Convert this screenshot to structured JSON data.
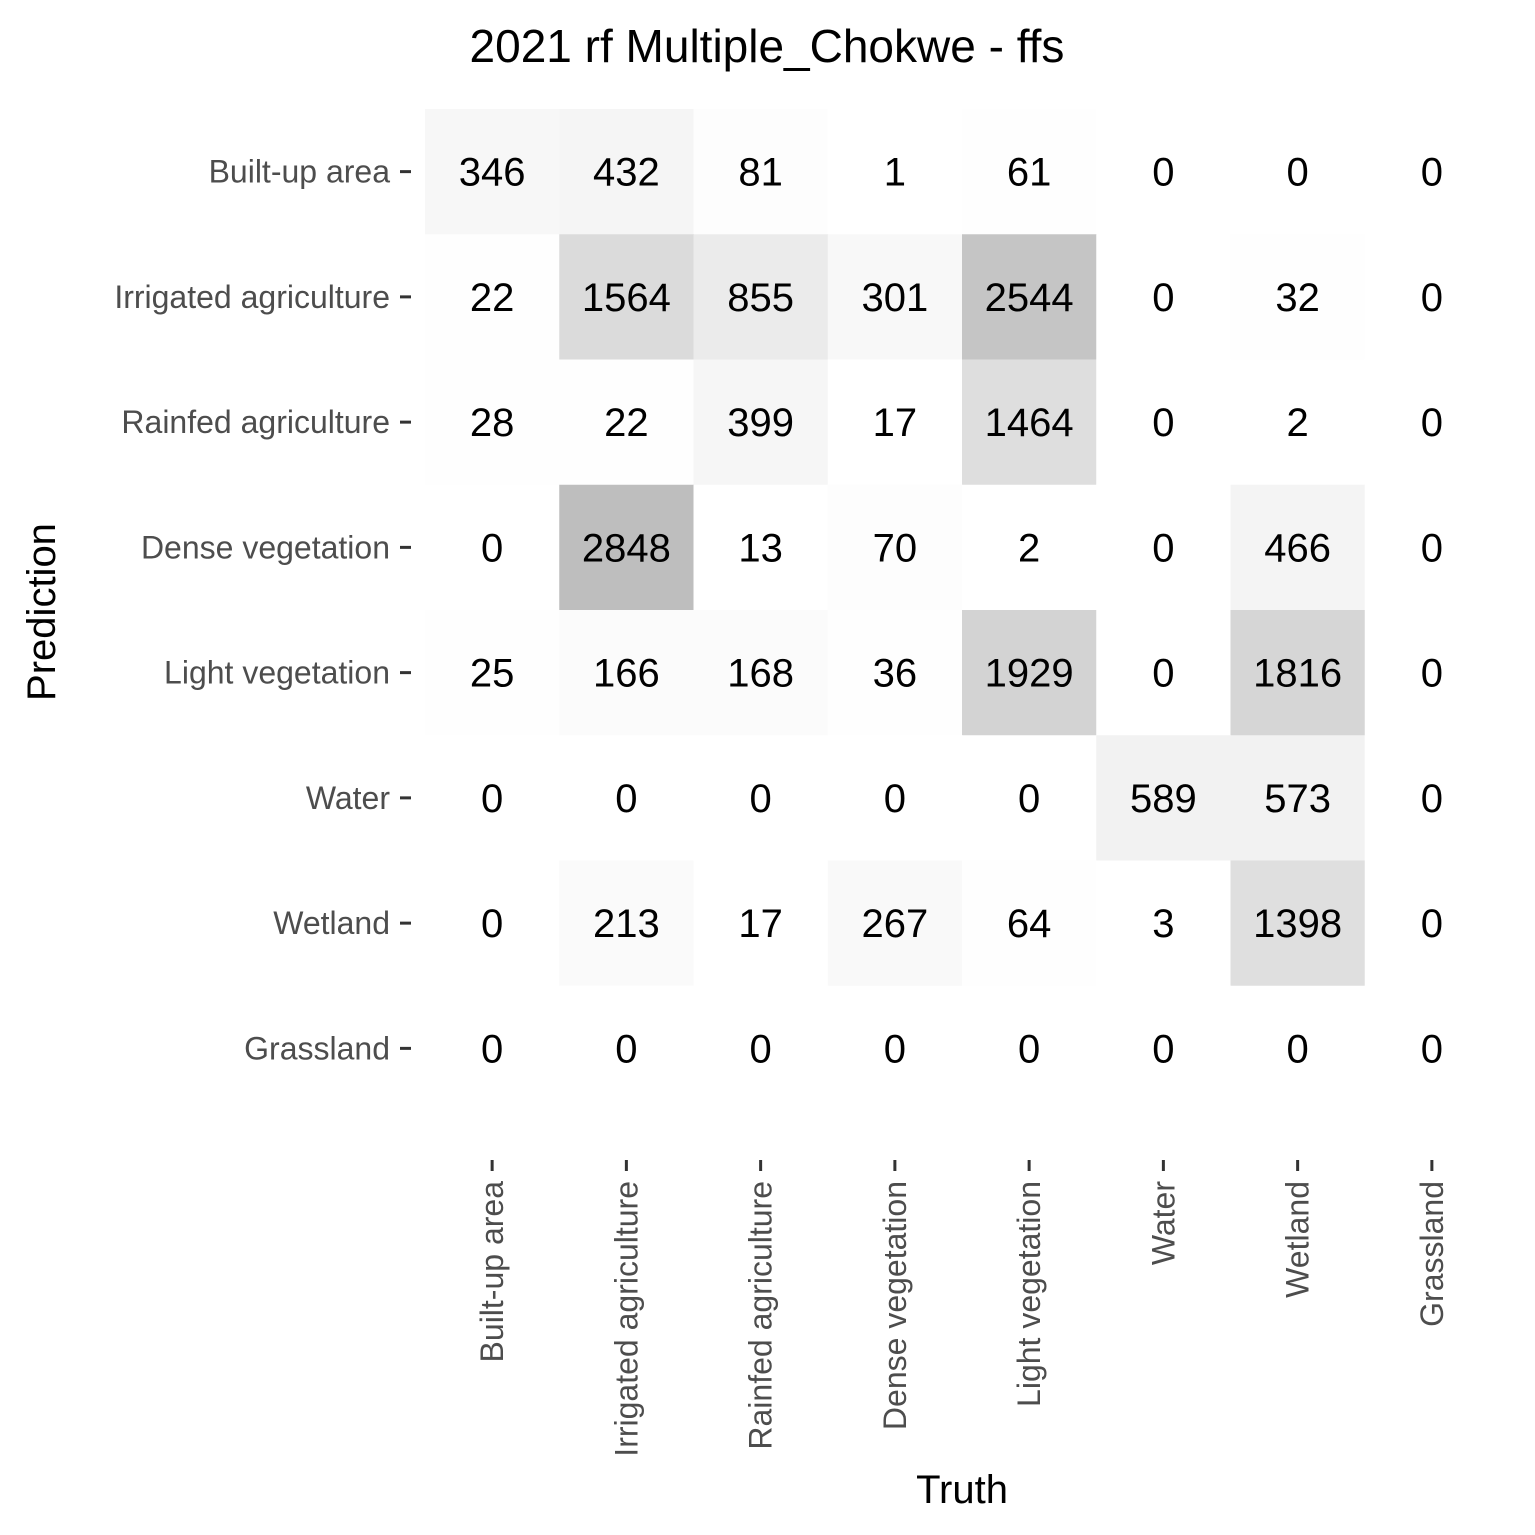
{
  "chart_data": {
    "type": "heatmap",
    "title": "2021 rf Multiple_Chokwe - ffs",
    "xlabel": "Truth",
    "ylabel": "Prediction",
    "x_categories": [
      "Built-up area",
      "Irrigated agriculture",
      "Rainfed agriculture",
      "Dense vegetation",
      "Light vegetation",
      "Water",
      "Wetland",
      "Grassland"
    ],
    "y_categories": [
      "Built-up area",
      "Irrigated agriculture",
      "Rainfed agriculture",
      "Dense vegetation",
      "Light vegetation",
      "Water",
      "Wetland",
      "Grassland"
    ],
    "values": [
      [
        346,
        432,
        81,
        1,
        61,
        0,
        0,
        0
      ],
      [
        22,
        1564,
        855,
        301,
        2544,
        0,
        32,
        0
      ],
      [
        28,
        22,
        399,
        17,
        1464,
        0,
        2,
        0
      ],
      [
        0,
        2848,
        13,
        70,
        2,
        0,
        466,
        0
      ],
      [
        25,
        166,
        168,
        36,
        1929,
        0,
        1816,
        0
      ],
      [
        0,
        0,
        0,
        0,
        0,
        589,
        573,
        0
      ],
      [
        0,
        213,
        17,
        267,
        64,
        3,
        1398,
        0
      ],
      [
        0,
        0,
        0,
        0,
        0,
        0,
        0,
        0
      ]
    ],
    "color_low": "#ffffff",
    "color_high": "#bebebe",
    "grid": false,
    "legend": "none"
  }
}
